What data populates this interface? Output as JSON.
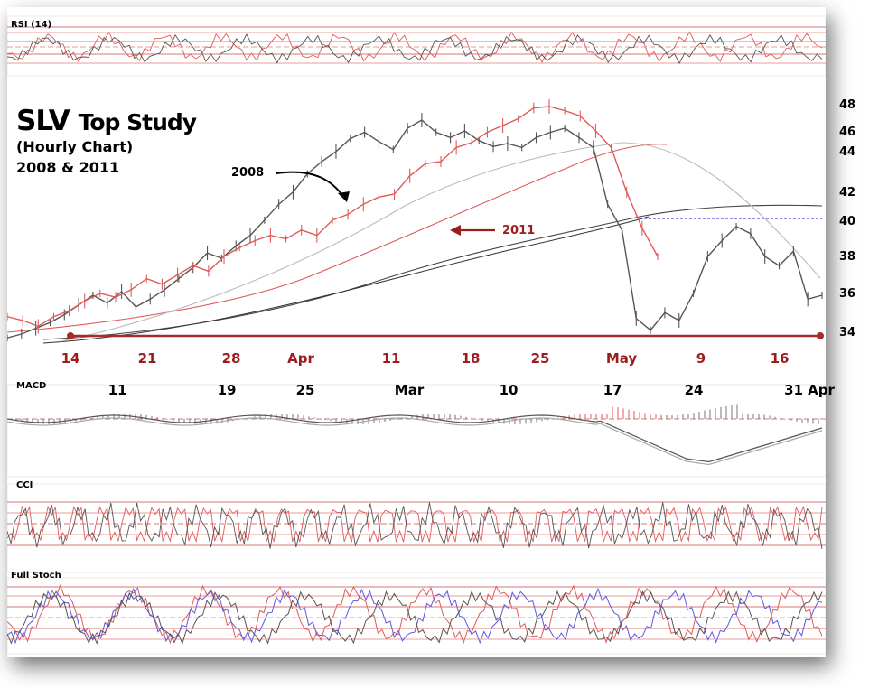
{
  "title": {
    "main": "SLV",
    "rest": "Top Study",
    "line2": "(Hourly Chart)",
    "line3": "2008 & 2011"
  },
  "panels": {
    "rsi": "RSI (14)",
    "macd": "MACD",
    "cci": "CCI",
    "stoch": "Full Stoch"
  },
  "annotations": {
    "label_2008": "2008",
    "label_2011": "2011"
  },
  "colors": {
    "series_2008": "#555555",
    "series_2011": "#e05a5a",
    "axis_red": "#9b1c1c",
    "support_line": "#a52a2a",
    "dashed_level": "#6666dd"
  },
  "chart_data": {
    "type": "line",
    "title": "SLV Top Study",
    "y_ticks": [
      48,
      46,
      44,
      42,
      40,
      38,
      36,
      34
    ],
    "x_labels_2011": [
      "14",
      "21",
      "28",
      "Apr",
      "11",
      "18",
      "25",
      "May",
      "9",
      "16"
    ],
    "x_labels_2008": [
      "11",
      "19",
      "25",
      "Mar",
      "10",
      "17",
      "24",
      "31 Apr"
    ],
    "support_level": 34,
    "dashed_level": 40.3,
    "series": [
      {
        "name": "2008",
        "values": [
          33.8,
          34.0,
          34.3,
          34.6,
          35.0,
          35.5,
          36.0,
          35.6,
          36.2,
          35.4,
          35.8,
          36.3,
          36.9,
          37.5,
          38.3,
          38.0,
          38.7,
          39.3,
          40.2,
          41.3,
          42.1,
          43.0,
          43.6,
          44.2,
          45.5,
          46.1,
          45.2,
          44.4,
          46.4,
          47.0,
          46.1,
          45.6,
          46.2,
          45.3,
          44.7,
          45.0,
          44.6,
          45.6,
          46.1,
          46.4,
          45.6,
          44.6,
          41.3,
          39.6,
          34.8,
          34.2,
          35.1,
          34.7,
          36.1,
          38.1,
          39.0,
          39.8,
          39.4,
          38.1,
          37.6,
          38.4,
          35.8,
          36.0
        ]
      },
      {
        "name": "2011",
        "values": [
          34.9,
          34.7,
          34.4,
          34.9,
          35.2,
          35.7,
          36.1,
          35.9,
          36.3,
          36.9,
          36.6,
          37.1,
          37.6,
          37.3,
          38.1,
          38.6,
          39.0,
          39.3,
          39.1,
          39.6,
          39.3,
          40.2,
          40.6,
          41.3,
          41.8,
          42.0,
          42.9,
          43.5,
          43.6,
          44.6,
          45.1,
          46.1,
          46.6,
          47.1,
          47.9,
          48.0,
          47.7,
          47.3,
          46.2,
          44.6,
          42.1,
          39.7,
          38.1
        ]
      }
    ]
  }
}
